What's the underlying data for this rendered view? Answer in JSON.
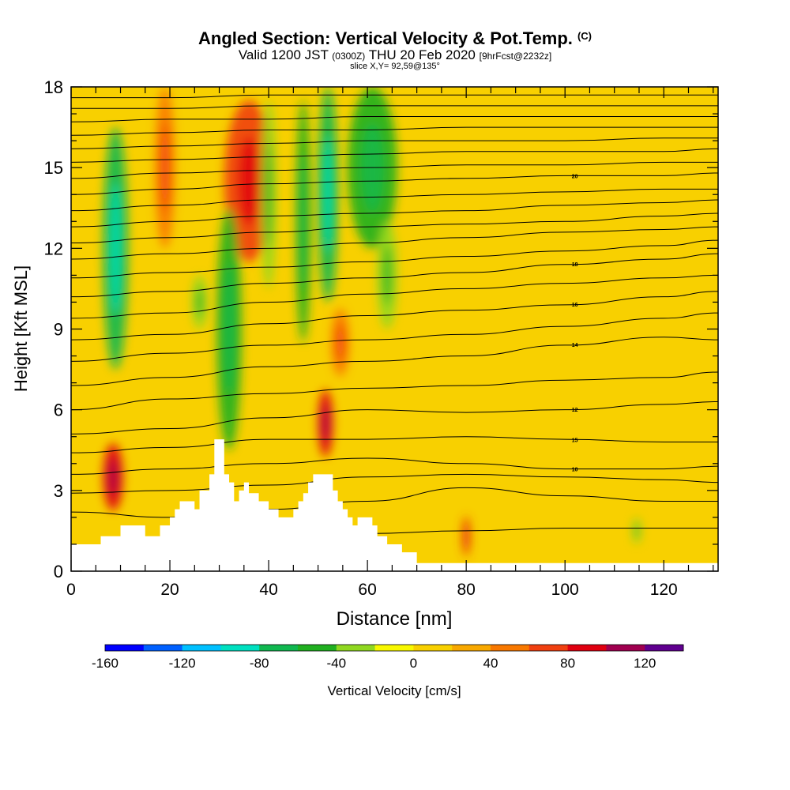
{
  "header": {
    "title": "Angled Section: Vertical Velocity & Pot.Temp.",
    "copyright": "(C)",
    "valid_prefix": "Valid 1200 JST",
    "valid_utc": "(0300Z)",
    "valid_date": "THU 20 Feb 2020",
    "forecast": "[9hrFcst@2232z]",
    "slice": "slice X,Y= 92,59@135°"
  },
  "chart_data": {
    "type": "heatmap",
    "title": "Angled Section: Vertical Velocity & Pot.Temp.",
    "xlabel": "Distance [nm]",
    "ylabel": "Height [Kft MSL]",
    "xlim": [
      0,
      131
    ],
    "ylim": [
      0,
      18
    ],
    "x_ticks": [
      "0",
      "20",
      "40",
      "60",
      "80",
      "100",
      "120"
    ],
    "y_ticks": [
      "0",
      "3",
      "6",
      "9",
      "12",
      "15",
      "18"
    ],
    "colorbar": {
      "label": "Vertical Velocity [cm/s]",
      "tick_labels": [
        "-160",
        "-120",
        "-80",
        "-40",
        "0",
        "40",
        "80",
        "120"
      ],
      "min": -160,
      "max": 140,
      "step": 20,
      "colors": [
        "#0000ff",
        "#0060ff",
        "#00c0ff",
        "#00e0c0",
        "#10b850",
        "#20b020",
        "#90d820",
        "#f8f800",
        "#f8d000",
        "#f8a800",
        "#f87800",
        "#f04010",
        "#e00010",
        "#a00050",
        "#600090"
      ]
    },
    "terrain_profile": {
      "x": [
        0,
        5,
        6,
        9,
        10,
        14,
        15,
        17,
        18,
        19,
        20,
        21,
        22,
        23,
        24,
        25,
        26,
        27,
        28,
        29,
        30,
        31,
        32,
        33,
        34,
        35,
        36,
        38,
        40,
        42,
        44,
        45,
        46,
        47,
        48,
        49,
        50,
        51,
        52,
        53,
        54,
        55,
        56,
        57,
        58,
        59,
        60,
        61,
        62,
        64,
        66,
        67,
        70,
        131
      ],
      "y": [
        1.0,
        1.0,
        1.3,
        1.3,
        1.7,
        1.7,
        1.3,
        1.3,
        1.7,
        1.7,
        2.0,
        2.3,
        2.6,
        2.6,
        2.6,
        2.3,
        3.0,
        3.0,
        3.6,
        4.9,
        4.9,
        3.6,
        3.3,
        2.6,
        3.0,
        3.3,
        2.9,
        2.6,
        2.3,
        2.0,
        2.0,
        2.3,
        2.6,
        2.9,
        3.3,
        3.6,
        3.6,
        3.6,
        3.6,
        3.0,
        2.6,
        2.3,
        2.0,
        1.7,
        2.0,
        2.0,
        2.0,
        1.7,
        1.3,
        1.0,
        1.0,
        0.7,
        0.3,
        0.3
      ]
    },
    "velocity_features": [
      {
        "x": 8.5,
        "y": 3.5,
        "value": 90,
        "w": 2,
        "h": 2.5
      },
      {
        "x": 9,
        "y": 12,
        "value": -70,
        "w": 2.5,
        "h": 9
      },
      {
        "x": 19,
        "y": 15,
        "value": 40,
        "w": 2,
        "h": 6
      },
      {
        "x": 26,
        "y": 10,
        "value": -40,
        "w": 1.5,
        "h": 2
      },
      {
        "x": 36,
        "y": 14.5,
        "value": 60,
        "w": 5,
        "h": 6
      },
      {
        "x": 32,
        "y": 9,
        "value": -50,
        "w": 2.5,
        "h": 9
      },
      {
        "x": 40,
        "y": 14,
        "value": -40,
        "w": 1.5,
        "h": 7
      },
      {
        "x": 47,
        "y": 13,
        "value": -60,
        "w": 1.5,
        "h": 9
      },
      {
        "x": 52,
        "y": 14,
        "value": -70,
        "w": 2,
        "h": 8
      },
      {
        "x": 51.5,
        "y": 5.5,
        "value": 95,
        "w": 1.5,
        "h": 2.5
      },
      {
        "x": 54.5,
        "y": 8.5,
        "value": 50,
        "w": 1.8,
        "h": 2.5
      },
      {
        "x": 61,
        "y": 15,
        "value": -60,
        "w": 5,
        "h": 6
      },
      {
        "x": 64,
        "y": 11,
        "value": -40,
        "w": 2,
        "h": 4
      },
      {
        "x": 114.5,
        "y": 1.5,
        "value": -40,
        "w": 0.8,
        "h": 1
      },
      {
        "x": 80,
        "y": 1.3,
        "value": 60,
        "w": 0.8,
        "h": 1.5
      }
    ],
    "isentropes": [
      {
        "label": "",
        "y": [
          0.9,
          1.0,
          1.3,
          1.4,
          1.5,
          1.6,
          1.6,
          1.6
        ]
      },
      {
        "label": "",
        "y": [
          2.2,
          2.0,
          2.3,
          2.6,
          3.1,
          2.8,
          2.6,
          2.6
        ]
      },
      {
        "label": "",
        "y": [
          2.9,
          3.0,
          3.2,
          3.5,
          3.6,
          3.5,
          3.4,
          3.3
        ]
      },
      {
        "label": "10",
        "y": [
          3.6,
          3.8,
          4.0,
          4.2,
          4.0,
          3.8,
          3.8,
          3.9
        ]
      },
      {
        "label": "15",
        "y": [
          4.4,
          4.6,
          4.9,
          4.9,
          5.0,
          4.9,
          4.8,
          4.8
        ]
      },
      {
        "label": "12",
        "y": [
          5.1,
          5.3,
          5.7,
          6.0,
          5.9,
          6.0,
          6.2,
          6.3
        ]
      },
      {
        "label": "",
        "y": [
          6.0,
          6.4,
          6.6,
          6.8,
          6.9,
          7.1,
          7.2,
          7.4
        ]
      },
      {
        "label": "14",
        "y": [
          6.9,
          7.2,
          7.6,
          7.8,
          8.0,
          8.4,
          8.7,
          8.6
        ]
      },
      {
        "label": "",
        "y": [
          7.8,
          8.1,
          8.4,
          8.6,
          8.8,
          9.1,
          9.4,
          9.6
        ]
      },
      {
        "label": "16",
        "y": [
          8.6,
          8.8,
          9.2,
          9.5,
          9.7,
          9.9,
          10.2,
          10.4
        ]
      },
      {
        "label": "",
        "y": [
          9.4,
          9.6,
          10.0,
          10.3,
          10.5,
          10.7,
          10.9,
          11.0
        ]
      },
      {
        "label": "18",
        "y": [
          10.2,
          10.4,
          10.7,
          10.9,
          11.1,
          11.4,
          11.6,
          11.8
        ]
      },
      {
        "label": "",
        "y": [
          10.9,
          11.1,
          11.3,
          11.5,
          11.7,
          11.9,
          12.1,
          12.3
        ]
      },
      {
        "label": "",
        "y": [
          11.6,
          11.8,
          12.0,
          12.2,
          12.4,
          12.6,
          12.7,
          12.8
        ]
      },
      {
        "label": "",
        "y": [
          12.2,
          12.4,
          12.6,
          12.8,
          12.9,
          13.0,
          13.2,
          13.3
        ]
      },
      {
        "label": "",
        "y": [
          12.8,
          13.0,
          13.2,
          13.3,
          13.4,
          13.6,
          13.7,
          13.8
        ]
      },
      {
        "label": "",
        "y": [
          13.4,
          13.6,
          13.8,
          13.9,
          14.0,
          14.1,
          14.2,
          14.2
        ]
      },
      {
        "label": "20",
        "y": [
          14.0,
          14.2,
          14.4,
          14.5,
          14.6,
          14.7,
          14.7,
          14.8
        ]
      },
      {
        "label": "",
        "y": [
          14.6,
          14.8,
          14.9,
          15.0,
          15.1,
          15.1,
          15.2,
          15.2
        ]
      },
      {
        "label": "",
        "y": [
          15.2,
          15.3,
          15.4,
          15.5,
          15.6,
          15.6,
          15.6,
          15.7
        ]
      },
      {
        "label": "",
        "y": [
          15.7,
          15.8,
          15.9,
          16.0,
          16.0,
          16.0,
          16.1,
          16.1
        ]
      },
      {
        "label": "",
        "y": [
          16.2,
          16.3,
          16.4,
          16.4,
          16.5,
          16.5,
          16.5,
          16.5
        ]
      },
      {
        "label": "",
        "y": [
          16.7,
          16.8,
          16.8,
          16.9,
          16.9,
          16.9,
          16.9,
          16.9
        ]
      },
      {
        "label": "",
        "y": [
          17.2,
          17.2,
          17.3,
          17.3,
          17.3,
          17.3,
          17.3,
          17.3
        ]
      },
      {
        "label": "",
        "y": [
          17.6,
          17.6,
          17.7,
          17.7,
          17.7,
          17.7,
          17.7,
          17.7
        ]
      }
    ],
    "isentrope_x": [
      0,
      20,
      40,
      60,
      80,
      100,
      120,
      131
    ],
    "grid": false
  }
}
